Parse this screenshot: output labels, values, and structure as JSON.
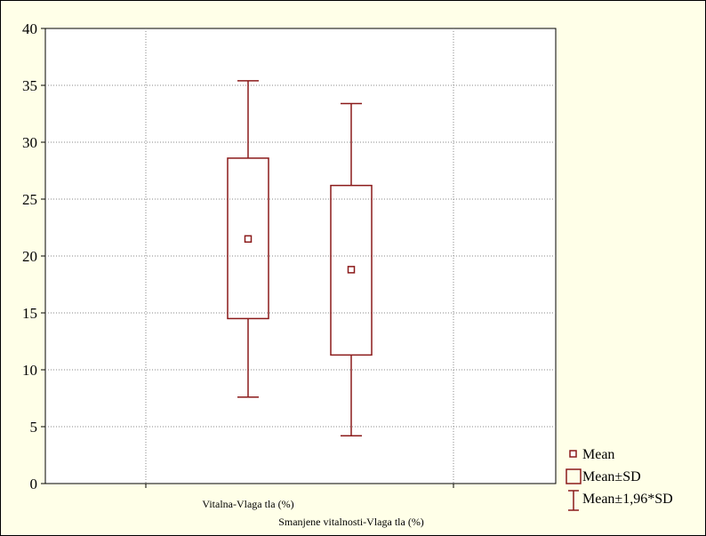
{
  "chart_data": {
    "type": "boxplot",
    "title": "",
    "xlabel": "",
    "ylabel": "",
    "ylim": [
      0,
      40
    ],
    "yticks": [
      0,
      5,
      10,
      15,
      20,
      25,
      30,
      35,
      40
    ],
    "grid": {
      "horizontal": true,
      "style": "dotted"
    },
    "legend_position": "right-bottom",
    "categories": [
      "Vitalna-Vlaga tla (%)",
      "Smanjene vitalnosti-Vlaga tla (%)"
    ],
    "series": [
      {
        "mean": 21.5,
        "mean_minus_sd": 14.5,
        "mean_plus_sd": 28.6,
        "lower_whisker": 7.6,
        "upper_whisker": 35.4
      },
      {
        "mean": 18.8,
        "mean_minus_sd": 11.3,
        "mean_plus_sd": 26.2,
        "lower_whisker": 4.2,
        "upper_whisker": 33.4
      }
    ],
    "legend": [
      "Mean",
      "Mean±SD",
      "Mean±1,96*SD"
    ],
    "colors": {
      "box": "#8b1a1a",
      "plot_bg": "#ffffff",
      "page_bg": "#ffffe8",
      "grid": "#888888"
    }
  }
}
